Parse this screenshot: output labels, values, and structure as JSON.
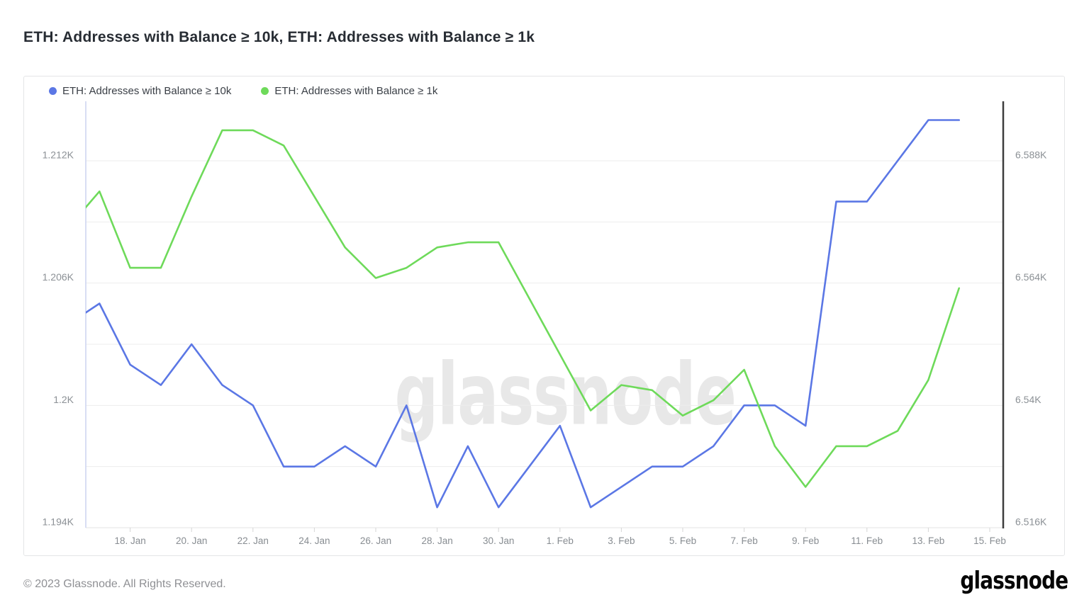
{
  "title": "ETH: Addresses with Balance ≥ 10k, ETH: Addresses with Balance ≥ 1k",
  "watermark": "glassnode",
  "footer": {
    "copyright": "© 2023 Glassnode. All Rights Reserved.",
    "logo": "glassnode"
  },
  "legend": [
    {
      "label": "ETH: Addresses with Balance ≥ 10k",
      "color": "#5b77e5"
    },
    {
      "label": "ETH: Addresses with Balance ≥ 1k",
      "color": "#6eda5a"
    }
  ],
  "chart_data": {
    "type": "line",
    "title": "ETH: Addresses with Balance ≥ 10k, ETH: Addresses with Balance ≥ 1k",
    "grid": true,
    "legend_position": "top-left",
    "x_dates": [
      "16. Jan",
      "17. Jan",
      "18. Jan",
      "19. Jan",
      "20. Jan",
      "21. Jan",
      "22. Jan",
      "23. Jan",
      "24. Jan",
      "25. Jan",
      "26. Jan",
      "27. Jan",
      "28. Jan",
      "29. Jan",
      "30. Jan",
      "31. Jan",
      "1. Feb",
      "2. Feb",
      "3. Feb",
      "4. Feb",
      "5. Feb",
      "6. Feb",
      "7. Feb",
      "8. Feb",
      "9. Feb",
      "10. Feb",
      "11. Feb",
      "12. Feb",
      "13. Feb",
      "14. Feb"
    ],
    "x_tick_labels": [
      "18. Jan",
      "20. Jan",
      "22. Jan",
      "24. Jan",
      "26. Jan",
      "28. Jan",
      "30. Jan",
      "1. Feb",
      "3. Feb",
      "5. Feb",
      "7. Feb",
      "9. Feb",
      "11. Feb",
      "13. Feb",
      "15. Feb"
    ],
    "series": [
      {
        "name": "ETH: Addresses with Balance ≥ 10k",
        "axis": "left",
        "color": "#5b77e5",
        "values": [
          1204,
          1205,
          1202,
          1201,
          1203,
          1201,
          1200,
          1197,
          1197,
          1198,
          1197,
          1200,
          1195,
          1198,
          1195,
          1197,
          1199,
          1195,
          1196,
          1197,
          1197,
          1198,
          1200,
          1200,
          1199,
          1210,
          1210,
          1212,
          1214,
          1214
        ]
      },
      {
        "name": "ETH: Addresses with Balance ≥ 1k",
        "axis": "right",
        "color": "#6eda5a",
        "values": [
          6575,
          6582,
          6567,
          6567,
          6581,
          6594,
          6594,
          6591,
          6581,
          6571,
          6565,
          6567,
          6571,
          6572,
          6572,
          6561,
          6550,
          6539,
          6544,
          6543,
          6538,
          6541,
          6547,
          6532,
          6524,
          6532,
          6532,
          6535,
          6545,
          6563
        ]
      }
    ],
    "left_axis": {
      "ylim": [
        1194,
        1214.92
      ],
      "gridline_values": [
        1212,
        1209,
        1206,
        1203,
        1200,
        1197,
        1194
      ],
      "ticks": [
        {
          "label": "1.212K",
          "value": 1212
        },
        {
          "label": "1.206K",
          "value": 1206
        },
        {
          "label": "1.2K",
          "value": 1200
        },
        {
          "label": "1.194K",
          "value": 1194
        }
      ]
    },
    "right_axis": {
      "ylim": [
        6516,
        6599.68
      ],
      "ticks": [
        {
          "label": "6.588K",
          "value": 6588
        },
        {
          "label": "6.564K",
          "value": 6564
        },
        {
          "label": "6.54K",
          "value": 6540
        },
        {
          "label": "6.516K",
          "value": 6516
        }
      ]
    }
  }
}
